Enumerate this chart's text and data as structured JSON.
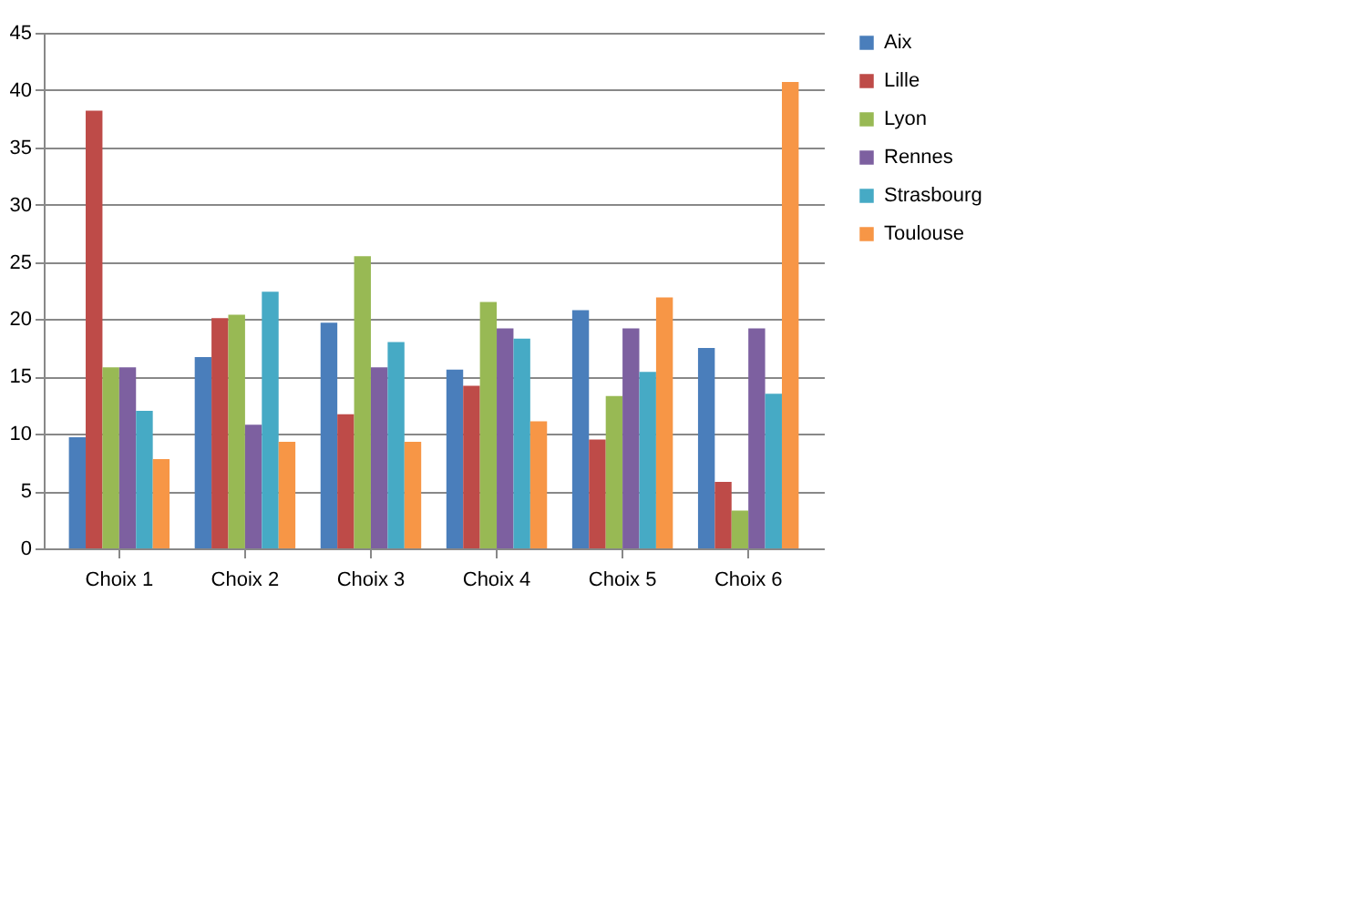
{
  "chart_data": {
    "type": "bar",
    "categories": [
      "Choix 1",
      "Choix 2",
      "Choix 3",
      "Choix 4",
      "Choix 5",
      "Choix 6"
    ],
    "series": [
      {
        "name": "Aix",
        "color": "#4a7ebb",
        "values": [
          9.7,
          16.7,
          19.7,
          15.6,
          20.8,
          17.5
        ]
      },
      {
        "name": "Lille",
        "color": "#be4b48",
        "values": [
          38.2,
          20.1,
          11.7,
          14.2,
          9.5,
          5.8
        ]
      },
      {
        "name": "Lyon",
        "color": "#98b954",
        "values": [
          15.8,
          20.4,
          25.5,
          21.5,
          13.3,
          3.3
        ]
      },
      {
        "name": "Rennes",
        "color": "#7d60a0",
        "values": [
          15.8,
          10.8,
          15.8,
          19.2,
          19.2,
          19.2
        ]
      },
      {
        "name": "Strasbourg",
        "color": "#46aac5",
        "values": [
          12.0,
          22.4,
          18.0,
          18.3,
          15.4,
          13.5
        ]
      },
      {
        "name": "Toulouse",
        "color": "#f79646",
        "values": [
          7.8,
          9.3,
          9.3,
          11.1,
          21.9,
          40.7
        ]
      }
    ],
    "ylim": [
      0,
      45
    ],
    "yticks": [
      0,
      5,
      10,
      15,
      20,
      25,
      30,
      35,
      40,
      45
    ],
    "grid": "y",
    "legend": "right"
  }
}
